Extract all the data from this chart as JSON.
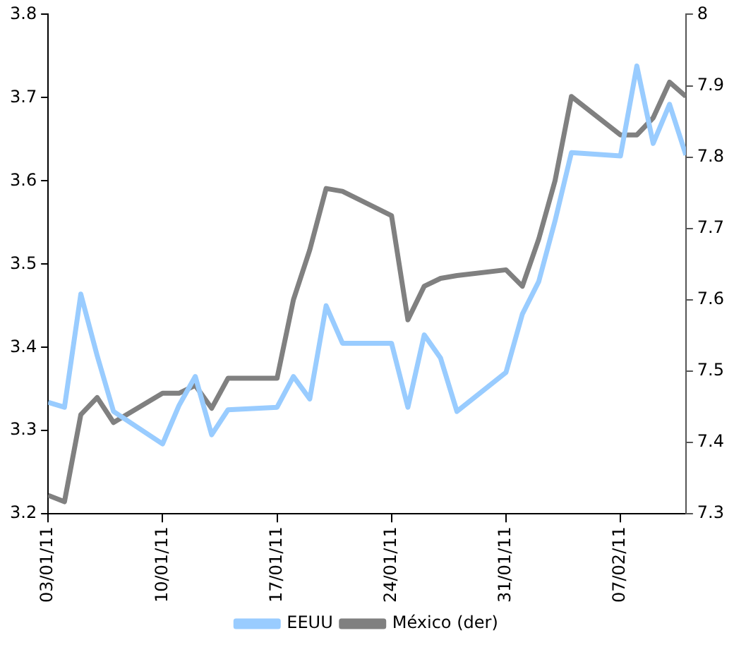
{
  "chart_data": {
    "type": "line",
    "x": [
      "--01-03",
      "--01-04",
      "--01-05",
      "--01-06",
      "--01-07",
      "--01-10",
      "--01-11",
      "--01-12",
      "--01-13",
      "--01-14",
      "--01-17",
      "--01-18",
      "--01-19",
      "--01-20",
      "--01-21",
      "--01-24",
      "--01-25",
      "--01-26",
      "--01-27",
      "--01-28",
      "--01-31",
      "--02-01",
      "--02-02",
      "--02-03",
      "--02-04",
      "--02-07",
      "--02-08",
      "--02-09",
      "--02-10",
      "--02-11"
    ],
    "series": [
      {
        "name": "EEUU",
        "color": "#99ccff",
        "values": [
          3.334,
          3.328,
          3.464,
          3.39,
          3.323,
          3.284,
          3.33,
          3.365,
          3.295,
          3.325,
          3.328,
          3.365,
          3.338,
          3.45,
          3.405,
          3.405,
          3.328,
          3.415,
          3.387,
          3.323,
          3.37,
          3.44,
          3.479,
          3.552,
          3.634,
          3.63,
          3.738,
          3.645,
          3.692,
          3.631
        ]
      },
      {
        "name": "México (der)",
        "color": "#808080",
        "axis": "y2",
        "values": [
          7.326,
          7.317,
          7.439,
          7.463,
          7.428,
          7.469,
          7.469,
          7.48,
          7.448,
          7.49,
          7.49,
          7.6,
          7.67,
          7.756,
          7.752,
          7.718,
          7.572,
          7.619,
          7.63,
          7.634,
          7.642,
          7.619,
          7.685,
          7.767,
          7.885,
          7.831,
          7.831,
          7.855,
          7.905,
          7.885
        ]
      }
    ],
    "xlim": [
      "--01-03",
      "--02-11"
    ],
    "xticks": [
      {
        "value": "--01-03",
        "label": "03/01/11"
      },
      {
        "value": "--01-10",
        "label": "10/01/11"
      },
      {
        "value": "--01-17",
        "label": "17/01/11"
      },
      {
        "value": "--01-24",
        "label": "24/01/11"
      },
      {
        "value": "--01-31",
        "label": "31/01/11"
      },
      {
        "value": "--02-07",
        "label": "07/02/11"
      }
    ],
    "ylim": [
      3.2,
      3.8
    ],
    "yticks": [
      3.2,
      3.3,
      3.4,
      3.5,
      3.6,
      3.7,
      3.8
    ],
    "y2lim": [
      7.3,
      8
    ],
    "y2ticks": [
      7.3,
      7.4,
      7.5,
      7.6,
      7.7,
      7.8,
      7.9,
      8
    ],
    "grid": false,
    "legend": "bottom",
    "marker": "none",
    "line_style": "solid"
  }
}
